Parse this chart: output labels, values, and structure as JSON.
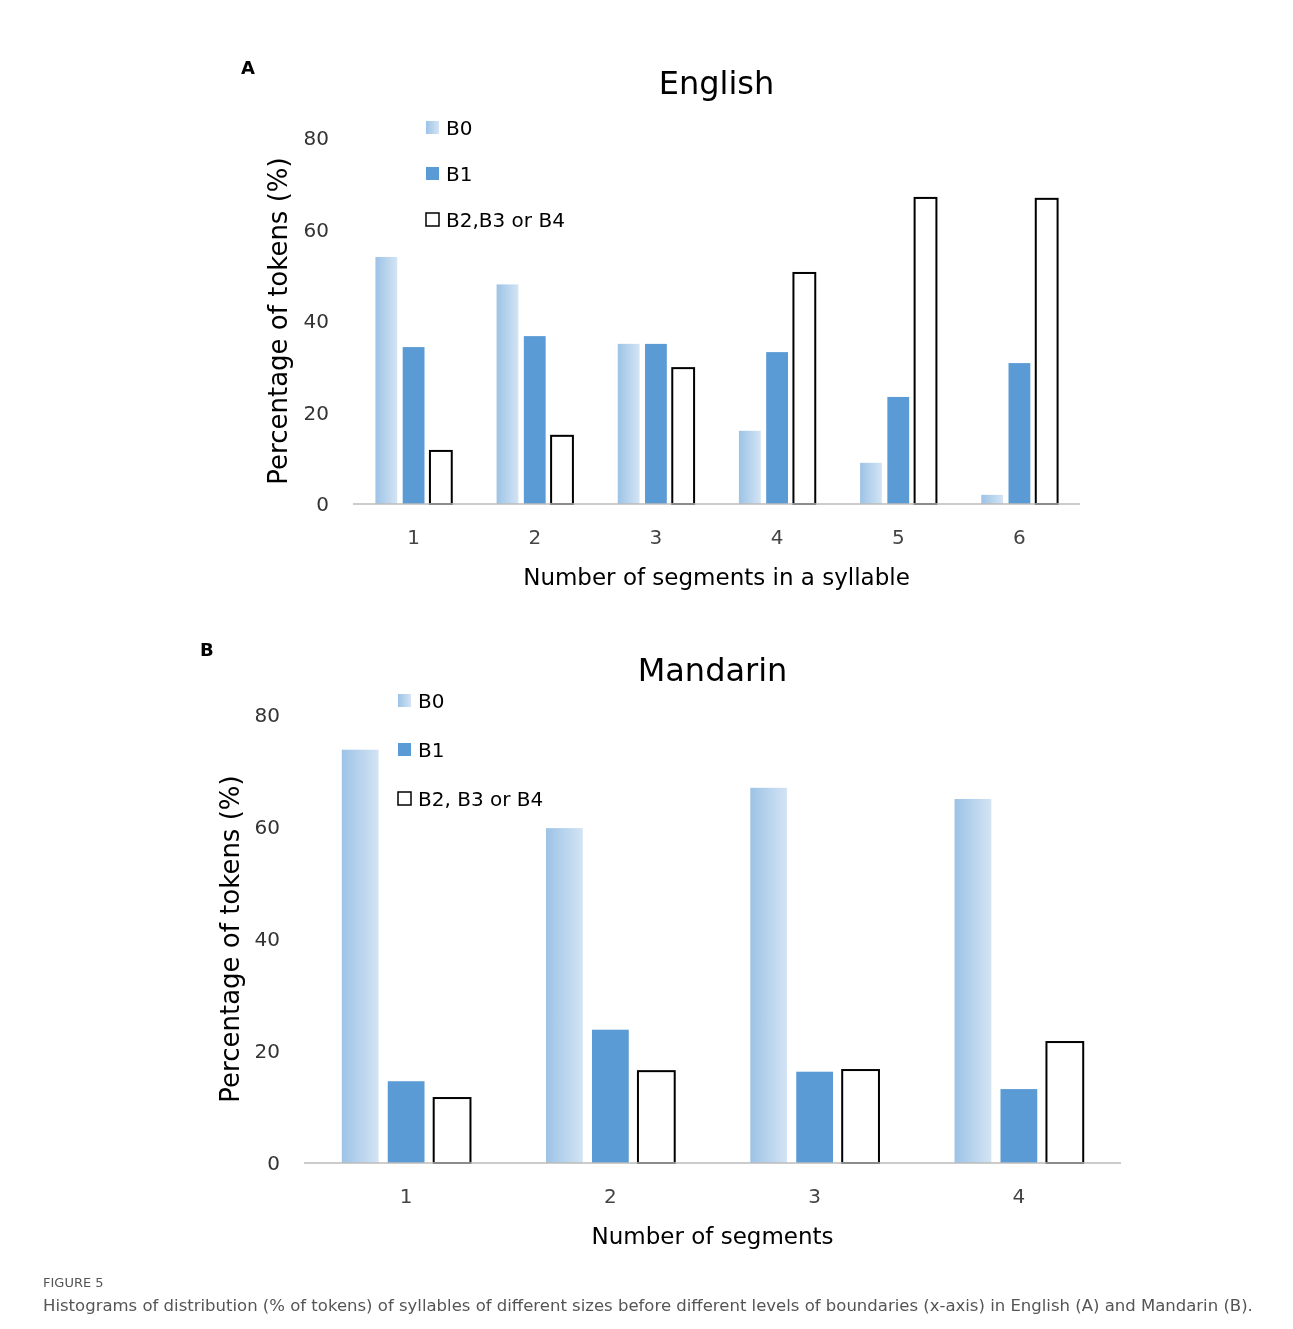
{
  "chart_data": [
    {
      "type": "bar",
      "title": "English",
      "xlabel": "Number of segments in a syllable",
      "ylabel": "Percentage of tokens (%)",
      "annotations": [
        "A"
      ],
      "categories": [
        "1",
        "2",
        "3",
        "4",
        "5",
        "6"
      ],
      "series": [
        {
          "name": "B0",
          "color": "#9dc3e6",
          "values": [
            54,
            48,
            35,
            16,
            9,
            2
          ]
        },
        {
          "name": "B1",
          "color": "#5b9bd5",
          "values": [
            34.3,
            36.7,
            35,
            33.2,
            23.4,
            30.8
          ]
        },
        {
          "name": "B2,B3 or B4",
          "color": "#ffffff",
          "values": [
            11.6,
            14.9,
            29.7,
            50.5,
            66.9,
            66.7
          ]
        }
      ],
      "ylim": [
        0,
        80
      ],
      "yticks": [
        0,
        20,
        40,
        60,
        80
      ],
      "grid": false,
      "legend": "top left"
    },
    {
      "type": "bar",
      "title": "Mandarin",
      "xlabel": "Number of segments",
      "ylabel": "Percentage of tokens (%)",
      "annotations": [
        "B",
        "FIGURE 5",
        "Histograms of distribution (% of tokens) of syllables of different sizes before different levels of boundaries (x-axis) in English (A) and Mandarin (B)."
      ],
      "categories": [
        "1",
        "2",
        "3",
        "4"
      ],
      "series": [
        {
          "name": "B0",
          "color": "#9dc3e6",
          "values": [
            73.8,
            59.8,
            67,
            65
          ]
        },
        {
          "name": "B1",
          "color": "#5b9bd5",
          "values": [
            14.6,
            23.8,
            16.3,
            13.2
          ]
        },
        {
          "name": "B2, B3 or B4",
          "color": "#ffffff",
          "values": [
            11.6,
            16.4,
            16.6,
            21.6
          ]
        }
      ],
      "ylim": [
        0,
        80
      ],
      "yticks": [
        0,
        20,
        40,
        60,
        80
      ],
      "grid": false,
      "legend": "top left"
    }
  ]
}
